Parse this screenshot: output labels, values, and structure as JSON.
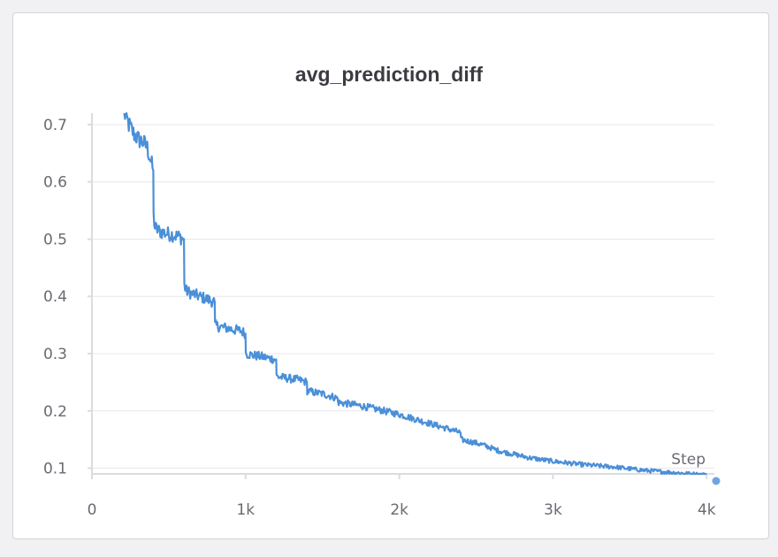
{
  "colors": {
    "line": "#4a8fd8",
    "grid": "#e8e8ec",
    "axis": "#dcdce0",
    "text": "#6a6a72",
    "title": "#3b3b42"
  },
  "chart_data": {
    "type": "line",
    "title": "avg_prediction_diff",
    "xlabel": "Step",
    "ylabel": "",
    "xlim": [
      0,
      4050
    ],
    "ylim": [
      0.09,
      0.72
    ],
    "x_ticks": [
      0,
      1000,
      2000,
      3000,
      4000
    ],
    "x_tick_labels": [
      "0",
      "1k",
      "2k",
      "3k",
      "4k"
    ],
    "y_ticks": [
      0.1,
      0.2,
      0.3,
      0.4,
      0.5,
      0.6,
      0.7
    ],
    "y_tick_labels": [
      "0.1",
      "0.2",
      "0.3",
      "0.4",
      "0.5",
      "0.6",
      "0.7"
    ],
    "grid": true,
    "legend": "none",
    "series": [
      {
        "x": [
          210,
          240,
          270,
          300,
          330,
          360,
          385,
          399,
          401,
          410,
          430,
          450,
          480,
          520,
          560,
          599,
          601,
          610,
          650,
          700,
          750,
          799,
          801,
          830,
          870,
          920,
          970,
          999,
          1001,
          1050,
          1100,
          1150,
          1199,
          1201,
          1250,
          1300,
          1350,
          1399,
          1401,
          1450,
          1500,
          1550,
          1599,
          1601,
          1650,
          1700,
          1750,
          1800,
          1850,
          1900,
          1950,
          2000,
          2050,
          2100,
          2150,
          2200,
          2250,
          2300,
          2350,
          2399,
          2401,
          2450,
          2500,
          2550,
          2600,
          2650,
          2700,
          2750,
          2800,
          2850,
          2900,
          2950,
          3000,
          3100,
          3200,
          3300,
          3400,
          3500,
          3600,
          3700,
          3800,
          3900,
          4000
        ],
        "y": [
          0.72,
          0.7,
          0.685,
          0.675,
          0.67,
          0.66,
          0.635,
          0.62,
          0.54,
          0.52,
          0.515,
          0.513,
          0.51,
          0.508,
          0.505,
          0.5,
          0.42,
          0.41,
          0.405,
          0.4,
          0.395,
          0.39,
          0.35,
          0.347,
          0.345,
          0.342,
          0.34,
          0.335,
          0.3,
          0.297,
          0.295,
          0.292,
          0.29,
          0.26,
          0.258,
          0.256,
          0.254,
          0.25,
          0.235,
          0.232,
          0.23,
          0.226,
          0.222,
          0.215,
          0.213,
          0.211,
          0.209,
          0.206,
          0.203,
          0.2,
          0.197,
          0.194,
          0.19,
          0.186,
          0.182,
          0.178,
          0.174,
          0.17,
          0.166,
          0.162,
          0.15,
          0.147,
          0.144,
          0.14,
          0.135,
          0.13,
          0.127,
          0.124,
          0.121,
          0.118,
          0.116,
          0.114,
          0.112,
          0.109,
          0.106,
          0.104,
          0.102,
          0.099,
          0.096,
          0.094,
          0.092,
          0.09,
          0.088
        ]
      }
    ]
  }
}
